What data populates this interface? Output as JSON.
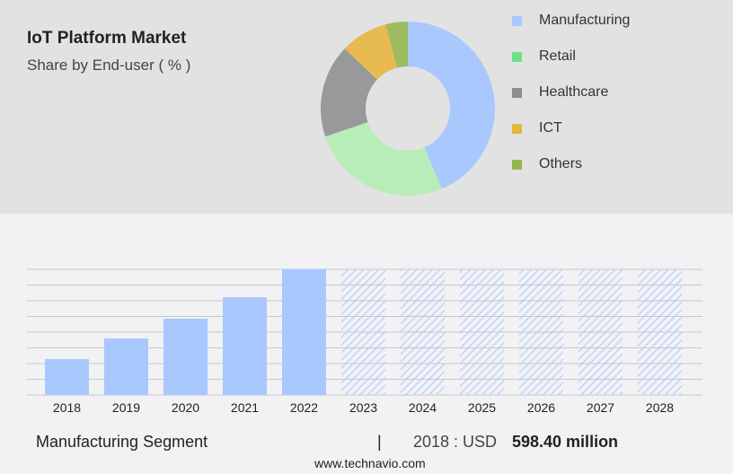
{
  "header": {
    "title": "IoT Platform Market",
    "subtitle": "Share by End-user ( % )"
  },
  "colors": {
    "Manufacturing": "#a8c8fe",
    "Retail": "#b8edb9",
    "Healthcare": "#999999",
    "ICT": "#e8bb50",
    "Others": "#9fbc5f"
  },
  "legend_colors": {
    "Manufacturing": "#a8c8fe",
    "Retail": "#6fe08a",
    "Healthcare": "#8d8d8d",
    "ICT": "#e2b93f",
    "Others": "#93b64f"
  },
  "chart_data": [
    {
      "type": "pie",
      "title": "Share by End-user ( % )",
      "donut": true,
      "labels": [
        "Manufacturing",
        "Retail",
        "Healthcare",
        "ICT",
        "Others"
      ],
      "values": [
        43.6,
        26.2,
        17.3,
        8.8,
        4.1
      ],
      "legend_placement": "right"
    },
    {
      "type": "bar",
      "title": "Manufacturing Segment",
      "xlabel": "",
      "ylabel": "USD million",
      "categories": [
        "2018",
        "2019",
        "2020",
        "2021",
        "2022",
        "2023",
        "2024",
        "2025",
        "2026",
        "2027",
        "2028"
      ],
      "values": [
        598.4,
        942,
        1272,
        1630,
        2094,
        null,
        null,
        null,
        null,
        null,
        null
      ],
      "forecast": [
        "2023",
        "2024",
        "2025",
        "2026",
        "2027",
        "2028"
      ],
      "ylim": [
        0,
        2094
      ],
      "grid": true
    }
  ],
  "footer": {
    "segment": "Manufacturing Segment",
    "separator": "|",
    "year_label": "2018 : USD",
    "value": "598.40 million",
    "url": "www.technavio.com"
  }
}
